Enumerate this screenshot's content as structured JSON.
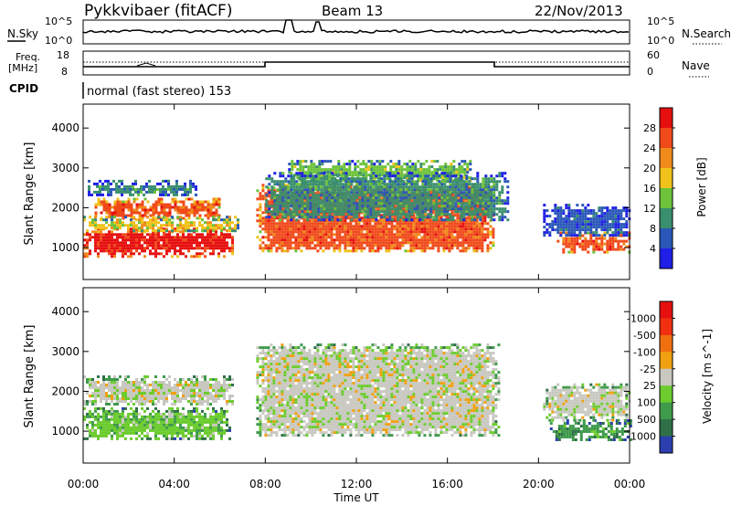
{
  "header": {
    "radar": "Pykkvibaer (fitACF)",
    "beam": "Beam 13",
    "date": "22/Nov/2013"
  },
  "top_panels": {
    "nsky_label": "N.Sky",
    "nsearch_label": "N.Search",
    "nsky_ticks": [
      "10^5",
      "10^0"
    ],
    "nsearch_ticks": [
      "10^5",
      "10^0"
    ],
    "freq_label_line1": "Freq.",
    "freq_label_line2": "[MHz]",
    "freq_ticks": [
      "18",
      "8"
    ],
    "nave_label": "Nave",
    "nave_ticks": [
      "60",
      "0"
    ],
    "cpid_label": "CPID",
    "cpid_text": "normal (fast stereo) 153"
  },
  "colors": {
    "power_scale": [
      "#1f1fe6",
      "#2a57b8",
      "#3a8f6e",
      "#6cc23a",
      "#f0c21a",
      "#f08a1a",
      "#f04a1a",
      "#e60f0f"
    ],
    "velocity_scale": [
      "#2b3fae",
      "#2f6f48",
      "#3f9a4c",
      "#6ccc2e",
      "#c8c8c0",
      "#f0a010",
      "#f07010",
      "#f03010",
      "#e61010"
    ],
    "ground_scatter": "#c8c8c0"
  },
  "chart_data": [
    {
      "type": "heatmap",
      "title": "",
      "xlabel": "Time UT",
      "ylabel": "Slant Range [km]",
      "x_ticks": [
        "00:00",
        "04:00",
        "08:00",
        "12:00",
        "16:00",
        "20:00",
        "00:00"
      ],
      "y_ticks": [
        1000,
        2000,
        3000,
        4000
      ],
      "ylim": [
        200,
        4600
      ],
      "xlim_hours": [
        0,
        24
      ],
      "colorbar_label": "Power [dB]",
      "colorbar_ticks": [
        4,
        8,
        12,
        16,
        20,
        24,
        28
      ],
      "colorbar_range": [
        0,
        32
      ],
      "regions": [
        {
          "t0": 0.0,
          "t1": 6.6,
          "r0": 800,
          "r1": 1500,
          "level": 7
        },
        {
          "t0": 0.5,
          "t1": 6.0,
          "r0": 1750,
          "r1": 2250,
          "level": 6
        },
        {
          "t0": 0.0,
          "t1": 6.8,
          "r0": 1400,
          "r1": 1800,
          "level": 4
        },
        {
          "t0": 0.2,
          "t1": 5.0,
          "r0": 2300,
          "r1": 2700,
          "level": 2
        },
        {
          "t0": 7.6,
          "t1": 18.0,
          "r0": 900,
          "r1": 2600,
          "level": 6
        },
        {
          "t0": 9.0,
          "t1": 17.0,
          "r0": 2600,
          "r1": 3200,
          "level": 3
        },
        {
          "t0": 8.0,
          "t1": 18.6,
          "r0": 1700,
          "r1": 2900,
          "level": 2
        },
        {
          "t0": 20.8,
          "t1": 24.0,
          "r0": 900,
          "r1": 1400,
          "level": 6
        },
        {
          "t0": 20.2,
          "t1": 24.0,
          "r0": 1300,
          "r1": 2100,
          "level": 1
        }
      ]
    },
    {
      "type": "heatmap",
      "title": "",
      "xlabel": "Time UT",
      "ylabel": "Slant Range [km]",
      "x_ticks": [
        "00:00",
        "04:00",
        "08:00",
        "12:00",
        "16:00",
        "20:00",
        "00:00"
      ],
      "y_ticks": [
        1000,
        2000,
        3000,
        4000
      ],
      "ylim": [
        200,
        4600
      ],
      "xlim_hours": [
        0,
        24
      ],
      "colorbar_label": "Velocity [m s^-1]",
      "colorbar_ticks": [
        "1000",
        "500",
        "100",
        "25",
        "-25",
        "-100",
        "-500",
        "-1000"
      ],
      "regions": [
        {
          "t0": 0.0,
          "t1": 6.6,
          "r0": 1700,
          "r1": 2400,
          "level": 4
        },
        {
          "t0": 0.0,
          "t1": 6.4,
          "r0": 800,
          "r1": 1600,
          "level": 3
        },
        {
          "t0": 7.6,
          "t1": 18.2,
          "r0": 900,
          "r1": 3200,
          "level": 4
        },
        {
          "t0": 20.5,
          "t1": 24.0,
          "r0": 800,
          "r1": 1300,
          "level": 2
        },
        {
          "t0": 20.2,
          "t1": 24.0,
          "r0": 1300,
          "r1": 2200,
          "level": 4
        }
      ]
    }
  ]
}
